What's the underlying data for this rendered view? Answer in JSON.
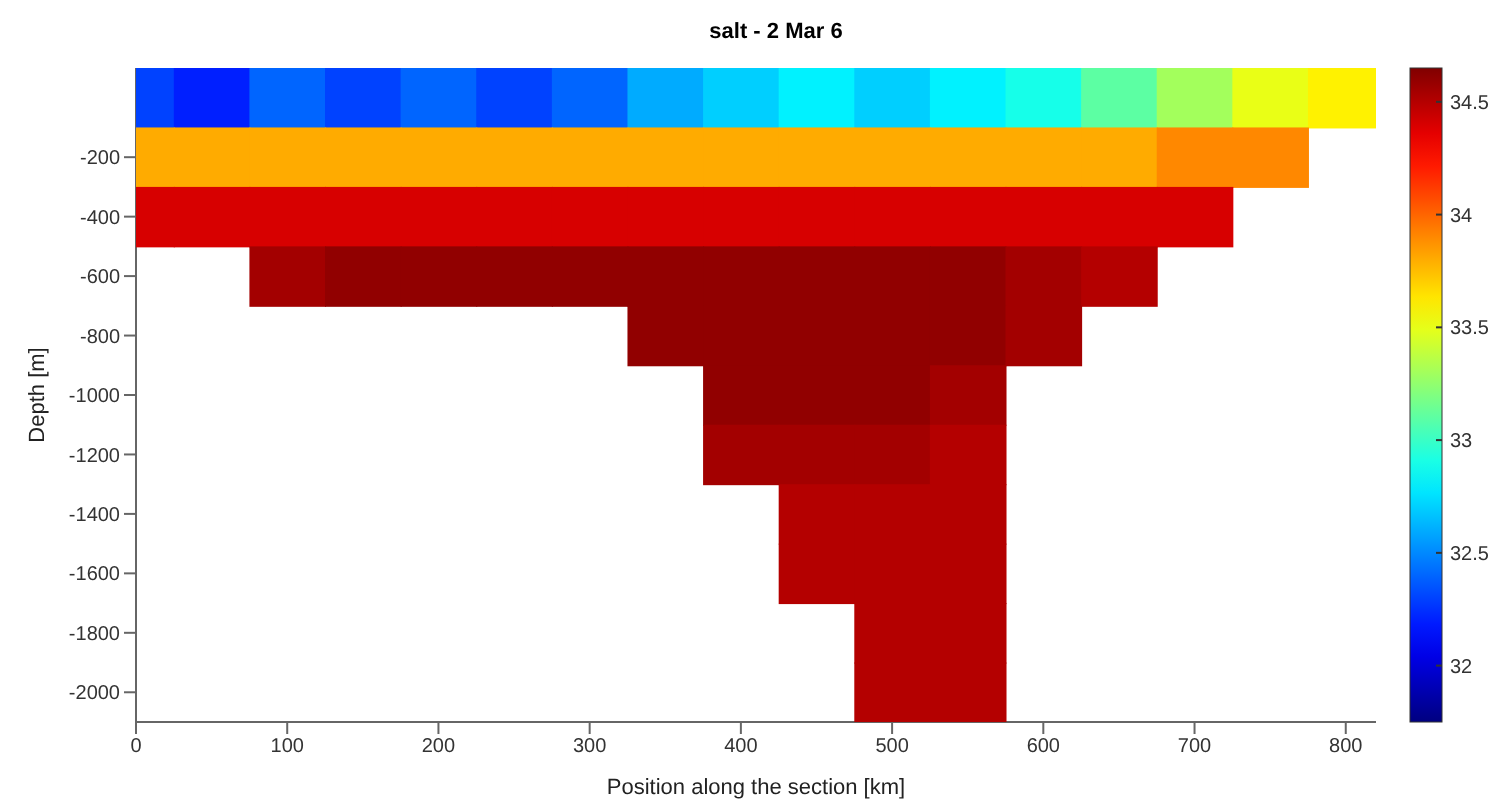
{
  "chart_data": {
    "type": "heatmap",
    "title": "salt - 2 Mar 6",
    "xlabel": "Position along the section [km]",
    "ylabel": "Depth [m]",
    "x": [
      0,
      50,
      100,
      150,
      200,
      250,
      300,
      350,
      400,
      450,
      500,
      550,
      600,
      650,
      700,
      750,
      800
    ],
    "y_categories": [
      null,
      "-200",
      "-400",
      "-600",
      "-800",
      "-1000",
      "-1200",
      "-1400",
      "-1600",
      "-1800",
      "-2000"
    ],
    "cells": [
      [
        32.3,
        32.2,
        32.4,
        32.3,
        32.4,
        32.3,
        32.4,
        32.6,
        32.7,
        32.8,
        32.7,
        32.8,
        32.9,
        33.1,
        33.3,
        33.5,
        33.6
      ],
      [
        33.8,
        33.8,
        33.8,
        33.8,
        33.8,
        33.8,
        33.8,
        33.8,
        33.8,
        33.8,
        33.8,
        33.8,
        33.8,
        33.8,
        33.9,
        33.9,
        null
      ],
      [
        34.4,
        34.4,
        34.4,
        34.4,
        34.4,
        34.4,
        34.4,
        34.4,
        34.4,
        34.4,
        34.4,
        34.4,
        34.4,
        34.4,
        34.4,
        null,
        null
      ],
      [
        null,
        null,
        34.55,
        34.6,
        34.6,
        34.6,
        34.6,
        34.6,
        34.6,
        34.6,
        34.6,
        34.6,
        34.55,
        34.5,
        null,
        null,
        null
      ],
      [
        null,
        null,
        null,
        null,
        null,
        null,
        null,
        34.6,
        34.6,
        34.6,
        34.6,
        34.6,
        34.55,
        null,
        null,
        null,
        null
      ],
      [
        null,
        null,
        null,
        null,
        null,
        null,
        null,
        null,
        34.6,
        34.6,
        34.6,
        34.55,
        null,
        null,
        null,
        null,
        null
      ],
      [
        null,
        null,
        null,
        null,
        null,
        null,
        null,
        null,
        34.55,
        34.55,
        34.55,
        34.5,
        null,
        null,
        null,
        null,
        null
      ],
      [
        null,
        null,
        null,
        null,
        null,
        null,
        null,
        null,
        null,
        34.5,
        34.5,
        34.5,
        null,
        null,
        null,
        null,
        null
      ],
      [
        null,
        null,
        null,
        null,
        null,
        null,
        null,
        null,
        null,
        34.5,
        34.5,
        34.5,
        null,
        null,
        null,
        null,
        null
      ],
      [
        null,
        null,
        null,
        null,
        null,
        null,
        null,
        null,
        null,
        null,
        34.5,
        34.5,
        null,
        null,
        null,
        null,
        null
      ],
      [
        null,
        null,
        null,
        null,
        null,
        null,
        null,
        null,
        null,
        null,
        34.5,
        34.5,
        null,
        null,
        null,
        null,
        null
      ]
    ],
    "xlim": [
      0,
      820
    ],
    "xticks": [
      0,
      100,
      200,
      300,
      400,
      500,
      600,
      700,
      800
    ],
    "clim": [
      31.75,
      34.65
    ],
    "cticks": [
      32,
      32.5,
      33,
      33.5,
      34,
      34.5
    ]
  }
}
